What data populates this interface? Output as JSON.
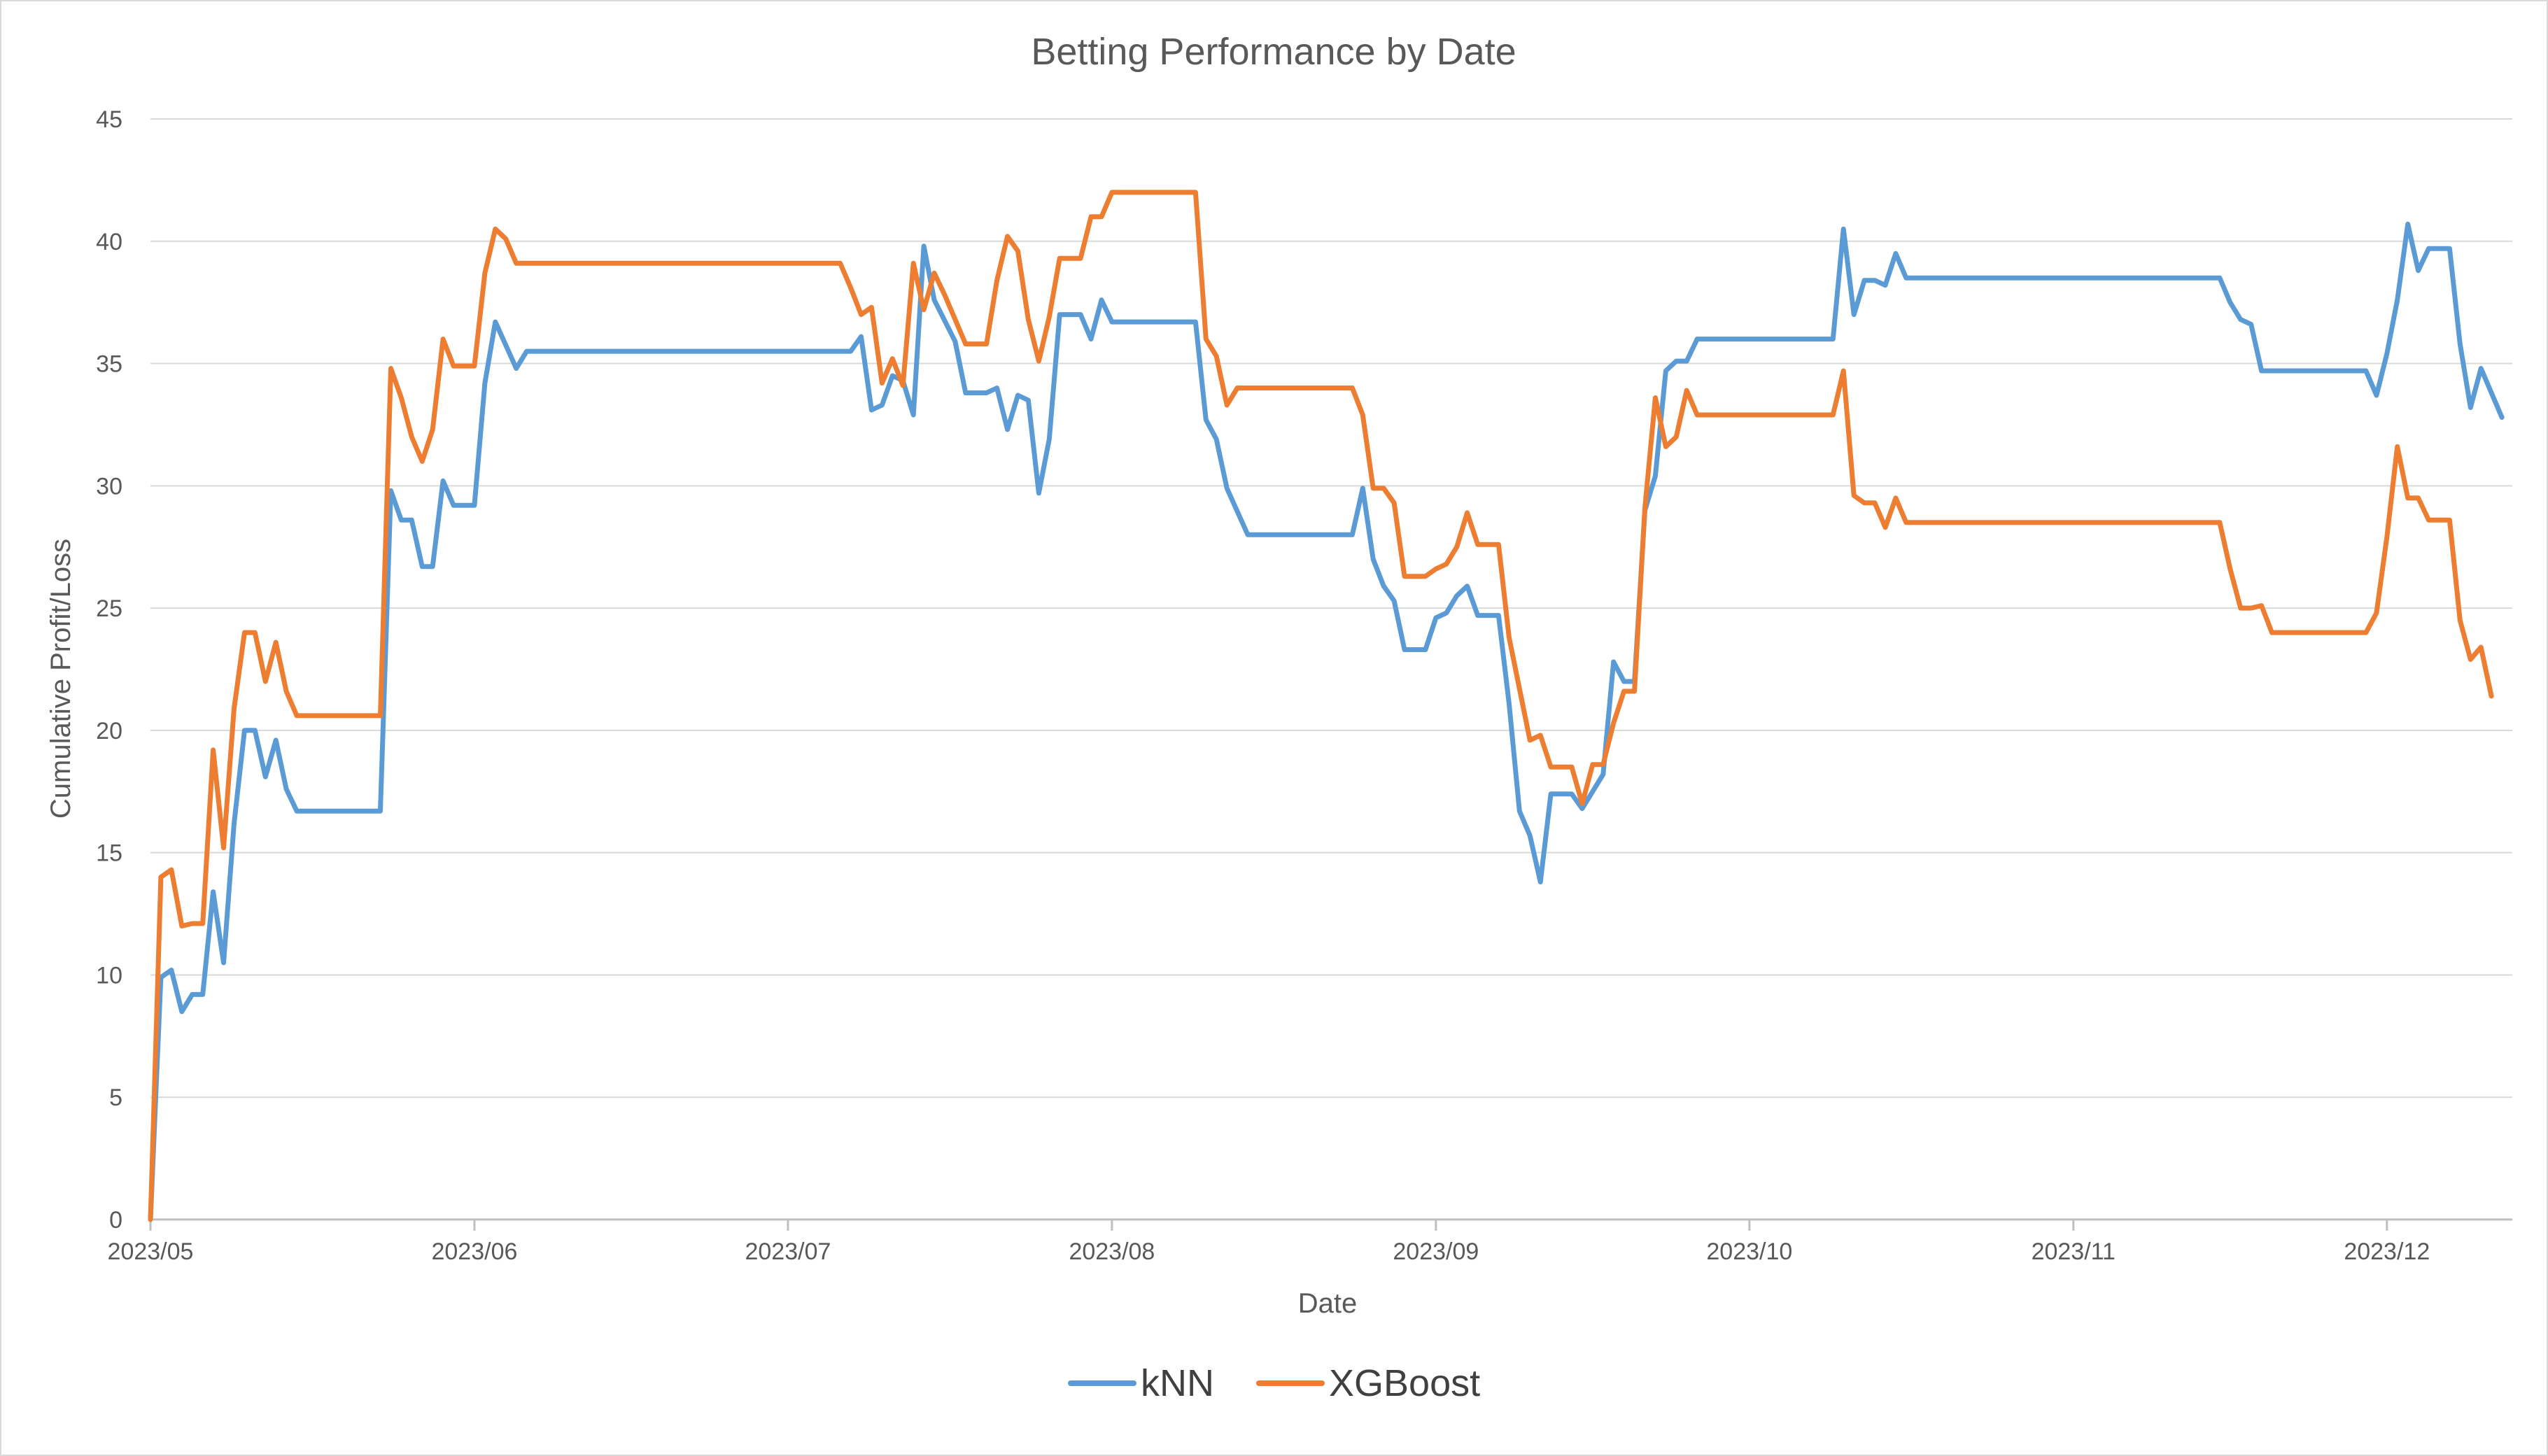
{
  "chart_data": {
    "type": "line",
    "title": "Betting Performance by Date",
    "xlabel": "Date",
    "ylabel": "Cumulative Profit/Loss",
    "xlim": [
      "2023-05-01",
      "2023-12-13"
    ],
    "ylim": [
      0,
      45
    ],
    "y_ticks": [
      0,
      5,
      10,
      15,
      20,
      25,
      30,
      35,
      40,
      45
    ],
    "x_ticks": [
      {
        "date": "2023-05-01",
        "label": "2023/05"
      },
      {
        "date": "2023-06-01",
        "label": "2023/06"
      },
      {
        "date": "2023-07-01",
        "label": "2023/07"
      },
      {
        "date": "2023-08-01",
        "label": "2023/08"
      },
      {
        "date": "2023-09-01",
        "label": "2023/09"
      },
      {
        "date": "2023-10-01",
        "label": "2023/10"
      },
      {
        "date": "2023-11-01",
        "label": "2023/11"
      },
      {
        "date": "2023-12-01",
        "label": "2023/12"
      }
    ],
    "grid": "horizontal",
    "legend_position": "bottom",
    "colors": {
      "kNN": "#5b9bd5",
      "XGBoost": "#ed7d31"
    },
    "series": [
      {
        "name": "kNN",
        "points": [
          [
            "2023-05-01",
            0
          ],
          [
            "2023-05-02",
            9.9
          ],
          [
            "2023-05-03",
            10.2
          ],
          [
            "2023-05-04",
            8.5
          ],
          [
            "2023-05-05",
            9.2
          ],
          [
            "2023-05-06",
            9.2
          ],
          [
            "2023-05-07",
            13.4
          ],
          [
            "2023-05-08",
            10.5
          ],
          [
            "2023-05-09",
            16.2
          ],
          [
            "2023-05-10",
            20
          ],
          [
            "2023-05-11",
            20
          ],
          [
            "2023-05-12",
            18.1
          ],
          [
            "2023-05-13",
            19.6
          ],
          [
            "2023-05-14",
            17.6
          ],
          [
            "2023-05-15",
            16.7
          ],
          [
            "2023-05-23",
            16.7
          ],
          [
            "2023-05-24",
            29.8
          ],
          [
            "2023-05-25",
            28.6
          ],
          [
            "2023-05-26",
            28.6
          ],
          [
            "2023-05-27",
            26.7
          ],
          [
            "2023-05-28",
            26.7
          ],
          [
            "2023-05-29",
            30.2
          ],
          [
            "2023-05-30",
            29.2
          ],
          [
            "2023-06-01",
            29.2
          ],
          [
            "2023-06-02",
            34.2
          ],
          [
            "2023-06-03",
            36.7
          ],
          [
            "2023-06-05",
            34.8
          ],
          [
            "2023-06-06",
            35.5
          ],
          [
            "2023-07-07",
            35.5
          ],
          [
            "2023-07-08",
            36.1
          ],
          [
            "2023-07-09",
            33.1
          ],
          [
            "2023-07-10",
            33.3
          ],
          [
            "2023-07-11",
            34.5
          ],
          [
            "2023-07-12",
            34.3
          ],
          [
            "2023-07-13",
            32.9
          ],
          [
            "2023-07-14",
            39.8
          ],
          [
            "2023-07-15",
            37.6
          ],
          [
            "2023-07-17",
            35.9
          ],
          [
            "2023-07-18",
            33.8
          ],
          [
            "2023-07-20",
            33.8
          ],
          [
            "2023-07-21",
            34
          ],
          [
            "2023-07-22",
            32.3
          ],
          [
            "2023-07-23",
            33.7
          ],
          [
            "2023-07-24",
            33.5
          ],
          [
            "2023-07-25",
            29.7
          ],
          [
            "2023-07-26",
            31.9
          ],
          [
            "2023-07-27",
            37
          ],
          [
            "2023-07-29",
            37
          ],
          [
            "2023-07-30",
            36
          ],
          [
            "2023-07-31",
            37.6
          ],
          [
            "2023-08-01",
            36.7
          ],
          [
            "2023-08-09",
            36.7
          ],
          [
            "2023-08-10",
            32.7
          ],
          [
            "2023-08-11",
            31.9
          ],
          [
            "2023-08-12",
            29.9
          ],
          [
            "2023-08-14",
            28
          ],
          [
            "2023-08-24",
            28
          ],
          [
            "2023-08-25",
            29.9
          ],
          [
            "2023-08-26",
            27
          ],
          [
            "2023-08-27",
            25.9
          ],
          [
            "2023-08-28",
            25.3
          ],
          [
            "2023-08-29",
            23.3
          ],
          [
            "2023-08-31",
            23.3
          ],
          [
            "2023-09-01",
            24.6
          ],
          [
            "2023-09-02",
            24.8
          ],
          [
            "2023-09-03",
            25.5
          ],
          [
            "2023-09-04",
            25.9
          ],
          [
            "2023-09-05",
            24.7
          ],
          [
            "2023-09-07",
            24.7
          ],
          [
            "2023-09-08",
            21.1
          ],
          [
            "2023-09-09",
            16.7
          ],
          [
            "2023-09-10",
            15.7
          ],
          [
            "2023-09-11",
            13.8
          ],
          [
            "2023-09-12",
            17.4
          ],
          [
            "2023-09-14",
            17.4
          ],
          [
            "2023-09-15",
            16.8
          ],
          [
            "2023-09-16",
            17.5
          ],
          [
            "2023-09-17",
            18.2
          ],
          [
            "2023-09-18",
            22.8
          ],
          [
            "2023-09-19",
            22
          ],
          [
            "2023-09-20",
            22
          ],
          [
            "2023-09-21",
            29
          ],
          [
            "2023-09-22",
            30.4
          ],
          [
            "2023-09-23",
            34.7
          ],
          [
            "2023-09-24",
            35.1
          ],
          [
            "2023-09-25",
            35.1
          ],
          [
            "2023-09-26",
            36
          ],
          [
            "2023-10-09",
            36
          ],
          [
            "2023-10-10",
            40.5
          ],
          [
            "2023-10-11",
            37
          ],
          [
            "2023-10-12",
            38.4
          ],
          [
            "2023-10-13",
            38.4
          ],
          [
            "2023-10-14",
            38.2
          ],
          [
            "2023-10-15",
            39.5
          ],
          [
            "2023-10-16",
            38.5
          ],
          [
            "2023-11-15",
            38.5
          ],
          [
            "2023-11-16",
            37.5
          ],
          [
            "2023-11-17",
            36.8
          ],
          [
            "2023-11-18",
            36.6
          ],
          [
            "2023-11-19",
            34.7
          ],
          [
            "2023-11-29",
            34.7
          ],
          [
            "2023-11-30",
            33.7
          ],
          [
            "2023-12-01",
            35.4
          ],
          [
            "2023-12-02",
            37.6
          ],
          [
            "2023-12-03",
            40.7
          ],
          [
            "2023-12-04",
            38.8
          ],
          [
            "2023-12-05",
            39.7
          ],
          [
            "2023-12-07",
            39.7
          ],
          [
            "2023-12-08",
            35.8
          ],
          [
            "2023-12-09",
            33.2
          ],
          [
            "2023-12-10",
            34.8
          ],
          [
            "2023-12-12",
            32.8
          ]
        ]
      },
      {
        "name": "XGBoost",
        "points": [
          [
            "2023-05-01",
            0
          ],
          [
            "2023-05-02",
            14
          ],
          [
            "2023-05-03",
            14.3
          ],
          [
            "2023-05-04",
            12
          ],
          [
            "2023-05-05",
            12.1
          ],
          [
            "2023-05-06",
            12.1
          ],
          [
            "2023-05-07",
            19.2
          ],
          [
            "2023-05-08",
            15.2
          ],
          [
            "2023-05-09",
            20.9
          ],
          [
            "2023-05-10",
            24
          ],
          [
            "2023-05-11",
            24
          ],
          [
            "2023-05-12",
            22
          ],
          [
            "2023-05-13",
            23.6
          ],
          [
            "2023-05-14",
            21.6
          ],
          [
            "2023-05-15",
            20.6
          ],
          [
            "2023-05-23",
            20.6
          ],
          [
            "2023-05-24",
            34.8
          ],
          [
            "2023-05-25",
            33.6
          ],
          [
            "2023-05-26",
            32
          ],
          [
            "2023-05-27",
            31
          ],
          [
            "2023-05-28",
            32.3
          ],
          [
            "2023-05-29",
            36
          ],
          [
            "2023-05-30",
            34.9
          ],
          [
            "2023-06-01",
            34.9
          ],
          [
            "2023-06-02",
            38.7
          ],
          [
            "2023-06-03",
            40.5
          ],
          [
            "2023-06-04",
            40.1
          ],
          [
            "2023-06-05",
            39.1
          ],
          [
            "2023-07-06",
            39.1
          ],
          [
            "2023-07-07",
            38.1
          ],
          [
            "2023-07-08",
            37
          ],
          [
            "2023-07-09",
            37.3
          ],
          [
            "2023-07-10",
            34.2
          ],
          [
            "2023-07-11",
            35.2
          ],
          [
            "2023-07-12",
            34.1
          ],
          [
            "2023-07-13",
            39.1
          ],
          [
            "2023-07-14",
            37.2
          ],
          [
            "2023-07-15",
            38.7
          ],
          [
            "2023-07-16",
            37.8
          ],
          [
            "2023-07-18",
            35.8
          ],
          [
            "2023-07-20",
            35.8
          ],
          [
            "2023-07-21",
            38.4
          ],
          [
            "2023-07-22",
            40.2
          ],
          [
            "2023-07-23",
            39.6
          ],
          [
            "2023-07-24",
            36.8
          ],
          [
            "2023-07-25",
            35.1
          ],
          [
            "2023-07-26",
            36.9
          ],
          [
            "2023-07-27",
            39.3
          ],
          [
            "2023-07-29",
            39.3
          ],
          [
            "2023-07-30",
            41
          ],
          [
            "2023-07-31",
            41
          ],
          [
            "2023-08-01",
            42
          ],
          [
            "2023-08-09",
            42
          ],
          [
            "2023-08-10",
            36
          ],
          [
            "2023-08-11",
            35.3
          ],
          [
            "2023-08-12",
            33.3
          ],
          [
            "2023-08-13",
            34
          ],
          [
            "2023-08-24",
            34
          ],
          [
            "2023-08-25",
            32.9
          ],
          [
            "2023-08-26",
            29.9
          ],
          [
            "2023-08-27",
            29.9
          ],
          [
            "2023-08-28",
            29.3
          ],
          [
            "2023-08-29",
            26.3
          ],
          [
            "2023-08-31",
            26.3
          ],
          [
            "2023-09-01",
            26.6
          ],
          [
            "2023-09-02",
            26.8
          ],
          [
            "2023-09-03",
            27.5
          ],
          [
            "2023-09-04",
            28.9
          ],
          [
            "2023-09-05",
            27.6
          ],
          [
            "2023-09-07",
            27.6
          ],
          [
            "2023-09-08",
            23.8
          ],
          [
            "2023-09-09",
            21.7
          ],
          [
            "2023-09-10",
            19.6
          ],
          [
            "2023-09-11",
            19.8
          ],
          [
            "2023-09-12",
            18.5
          ],
          [
            "2023-09-14",
            18.5
          ],
          [
            "2023-09-15",
            17
          ],
          [
            "2023-09-16",
            18.6
          ],
          [
            "2023-09-17",
            18.6
          ],
          [
            "2023-09-18",
            20.3
          ],
          [
            "2023-09-19",
            21.6
          ],
          [
            "2023-09-20",
            21.6
          ],
          [
            "2023-09-21",
            29.1
          ],
          [
            "2023-09-22",
            33.6
          ],
          [
            "2023-09-23",
            31.6
          ],
          [
            "2023-09-24",
            32
          ],
          [
            "2023-09-25",
            33.9
          ],
          [
            "2023-09-26",
            32.9
          ],
          [
            "2023-10-09",
            32.9
          ],
          [
            "2023-10-10",
            34.7
          ],
          [
            "2023-10-11",
            29.6
          ],
          [
            "2023-10-12",
            29.3
          ],
          [
            "2023-10-13",
            29.3
          ],
          [
            "2023-10-14",
            28.3
          ],
          [
            "2023-10-15",
            29.5
          ],
          [
            "2023-10-16",
            28.5
          ],
          [
            "2023-11-15",
            28.5
          ],
          [
            "2023-11-16",
            26.6
          ],
          [
            "2023-11-17",
            25
          ],
          [
            "2023-11-18",
            25
          ],
          [
            "2023-11-19",
            25.1
          ],
          [
            "2023-11-20",
            24
          ],
          [
            "2023-11-28",
            24
          ],
          [
            "2023-11-29",
            24
          ],
          [
            "2023-11-30",
            24.8
          ],
          [
            "2023-12-01",
            27.9
          ],
          [
            "2023-12-02",
            31.6
          ],
          [
            "2023-12-03",
            29.5
          ],
          [
            "2023-12-04",
            29.5
          ],
          [
            "2023-12-05",
            28.6
          ],
          [
            "2023-12-07",
            28.6
          ],
          [
            "2023-12-08",
            24.5
          ],
          [
            "2023-12-09",
            22.9
          ],
          [
            "2023-12-10",
            23.4
          ],
          [
            "2023-12-11",
            21.4
          ]
        ]
      }
    ]
  }
}
